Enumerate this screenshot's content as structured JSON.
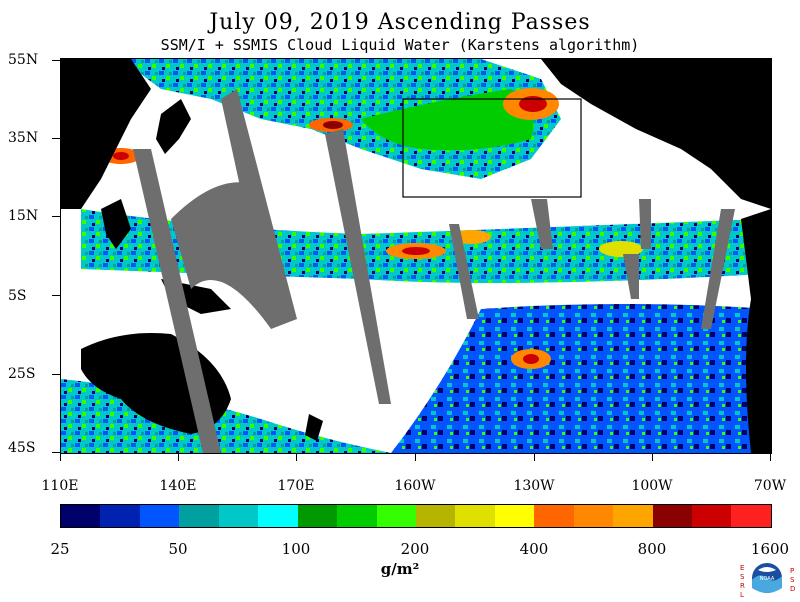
{
  "title": "July 09, 2019  Ascending Passes",
  "subtitle": "SSM/I + SSMIS Cloud Liquid Water (Karstens algorithm)",
  "lat_labels": [
    "55N",
    "35N",
    "15N",
    "5S",
    "25S",
    "45S"
  ],
  "lon_labels": [
    "110E",
    "140E",
    "170E",
    "160W",
    "130W",
    "100W",
    "70W"
  ],
  "colorbar": {
    "colors": [
      "#00006b",
      "#0022b0",
      "#0055ff",
      "#00a0a0",
      "#00c8c8",
      "#00ffff",
      "#009900",
      "#00cc00",
      "#33ff00",
      "#b5b500",
      "#e0e000",
      "#ffff00",
      "#ff6600",
      "#ff8800",
      "#ffa500",
      "#8b0000",
      "#cc0000",
      "#ff2020"
    ],
    "tick_labels": [
      "25",
      "50",
      "100",
      "200",
      "400",
      "800",
      "1600"
    ],
    "units": "g/m²"
  },
  "logo": {
    "left_letters": [
      "E",
      "S",
      "R",
      "L"
    ],
    "right_letters": [
      "P",
      "S",
      "D"
    ],
    "center": "NOAA"
  },
  "colors": {
    "land": "#000000",
    "missing": "#6e6e6e",
    "clear": "#ffffff"
  }
}
